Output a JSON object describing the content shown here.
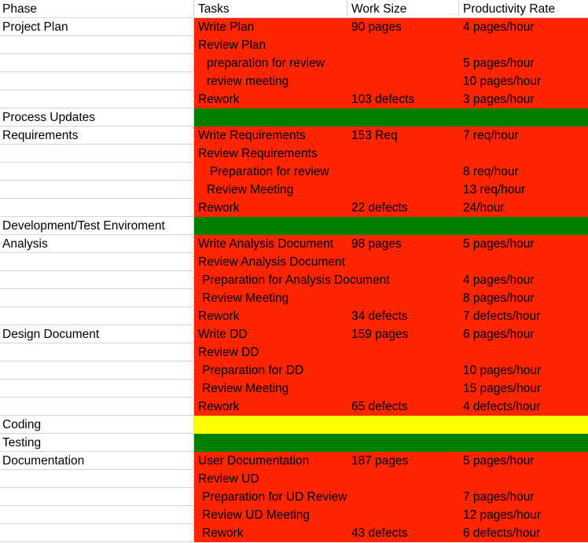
{
  "headers": {
    "phase": "Phase",
    "tasks": "Tasks",
    "work_size": "Work Size",
    "productivity_rate": "Productivity Rate"
  },
  "colors": {
    "red": "#ff2500",
    "green": "#008000",
    "yellow": "#ffff00"
  },
  "rows": [
    {
      "phase": "Project Plan",
      "task": "Write Plan",
      "indent": 0,
      "work": "90 pages",
      "rate": "4 pages/hour",
      "fill": "red"
    },
    {
      "phase": "",
      "task": "Review Plan",
      "indent": 0,
      "work": "",
      "rate": "",
      "fill": "red"
    },
    {
      "phase": "",
      "task": "preparation for review",
      "indent": 2,
      "work": "",
      "rate": "5 pages/hour",
      "fill": "red"
    },
    {
      "phase": "",
      "task": "review meeting",
      "indent": 2,
      "work": "",
      "rate": "10 pages/hour",
      "fill": "red"
    },
    {
      "phase": "",
      "task": "Rework",
      "indent": 0,
      "work": "103 defects",
      "rate": "3 pages/hour",
      "fill": "red"
    },
    {
      "phase": "Process Updates",
      "task": "",
      "indent": 0,
      "work": "",
      "rate": "",
      "fill": "green"
    },
    {
      "phase": "Requirements",
      "task": "Write Requirements",
      "indent": 0,
      "work": "153 Req",
      "rate": "7 req/hour",
      "fill": "red"
    },
    {
      "phase": "",
      "task": "Review Requirements",
      "indent": 0,
      "work": "",
      "rate": "",
      "fill": "red"
    },
    {
      "phase": "",
      "task": "Preparation for review",
      "indent": 3,
      "work": "",
      "rate": "8 req/hour",
      "fill": "red"
    },
    {
      "phase": "",
      "task": "Review Meeting",
      "indent": 2,
      "work": "",
      "rate": "13 req/hour",
      "fill": "red"
    },
    {
      "phase": "",
      "task": "Rework",
      "indent": 0,
      "work": "22 defects",
      "rate": "24/hour",
      "fill": "red"
    },
    {
      "phase": "Development/Test Enviroment",
      "task": "",
      "indent": 0,
      "work": "",
      "rate": "",
      "fill": "green"
    },
    {
      "phase": "Analysis",
      "task": "Write Analysis Document",
      "indent": 0,
      "work": "98 pages",
      "rate": "5 pages/hour",
      "fill": "red"
    },
    {
      "phase": "",
      "task": "Review Analysis Document",
      "indent": 0,
      "work": "",
      "rate": "",
      "fill": "red"
    },
    {
      "phase": "",
      "task": "Preparation for Analysis Document",
      "indent": 1,
      "work": "",
      "rate": "4 pages/hour",
      "fill": "red"
    },
    {
      "phase": "",
      "task": "Review Meeting",
      "indent": 1,
      "work": "",
      "rate": "8 pages/hour",
      "fill": "red"
    },
    {
      "phase": "",
      "task": "Rework",
      "indent": 0,
      "work": "34 defects",
      "rate": "7 defects/hour",
      "fill": "red"
    },
    {
      "phase": "Design Document",
      "task": "Write DD",
      "indent": 0,
      "work": "159 pages",
      "rate": "6 pages/hour",
      "fill": "red"
    },
    {
      "phase": "",
      "task": "Review DD",
      "indent": 0,
      "work": "",
      "rate": "",
      "fill": "red"
    },
    {
      "phase": "",
      "task": "Preparation for DD",
      "indent": 1,
      "work": "",
      "rate": "10 pages/hour",
      "fill": "red"
    },
    {
      "phase": "",
      "task": "Review Meeting",
      "indent": 1,
      "work": "",
      "rate": "15 pages/hour",
      "fill": "red"
    },
    {
      "phase": "",
      "task": "Rework",
      "indent": 0,
      "work": "65 defects",
      "rate": "4 defects/hour",
      "fill": "red"
    },
    {
      "phase": "Coding",
      "task": "",
      "indent": 0,
      "work": "",
      "rate": "",
      "fill": "yellow"
    },
    {
      "phase": "Testing",
      "task": "",
      "indent": 0,
      "work": "",
      "rate": "",
      "fill": "green"
    },
    {
      "phase": "Documentation",
      "task": "User Documentation",
      "indent": 0,
      "work": "187 pages",
      "rate": "5 pages/hour",
      "fill": "red"
    },
    {
      "phase": "",
      "task": "Review UD",
      "indent": 0,
      "work": "",
      "rate": "",
      "fill": "red"
    },
    {
      "phase": "",
      "task": "Preparation for UD Review",
      "indent": 1,
      "work": "",
      "rate": "7 pages/hour",
      "fill": "red"
    },
    {
      "phase": "",
      "task": "Review UD Meeting",
      "indent": 1,
      "work": "",
      "rate": "12 pages/hour",
      "fill": "red"
    },
    {
      "phase": "",
      "task": "Rework",
      "indent": 1,
      "work": "43 defects",
      "rate": "6 defects/hour",
      "fill": "red"
    }
  ]
}
